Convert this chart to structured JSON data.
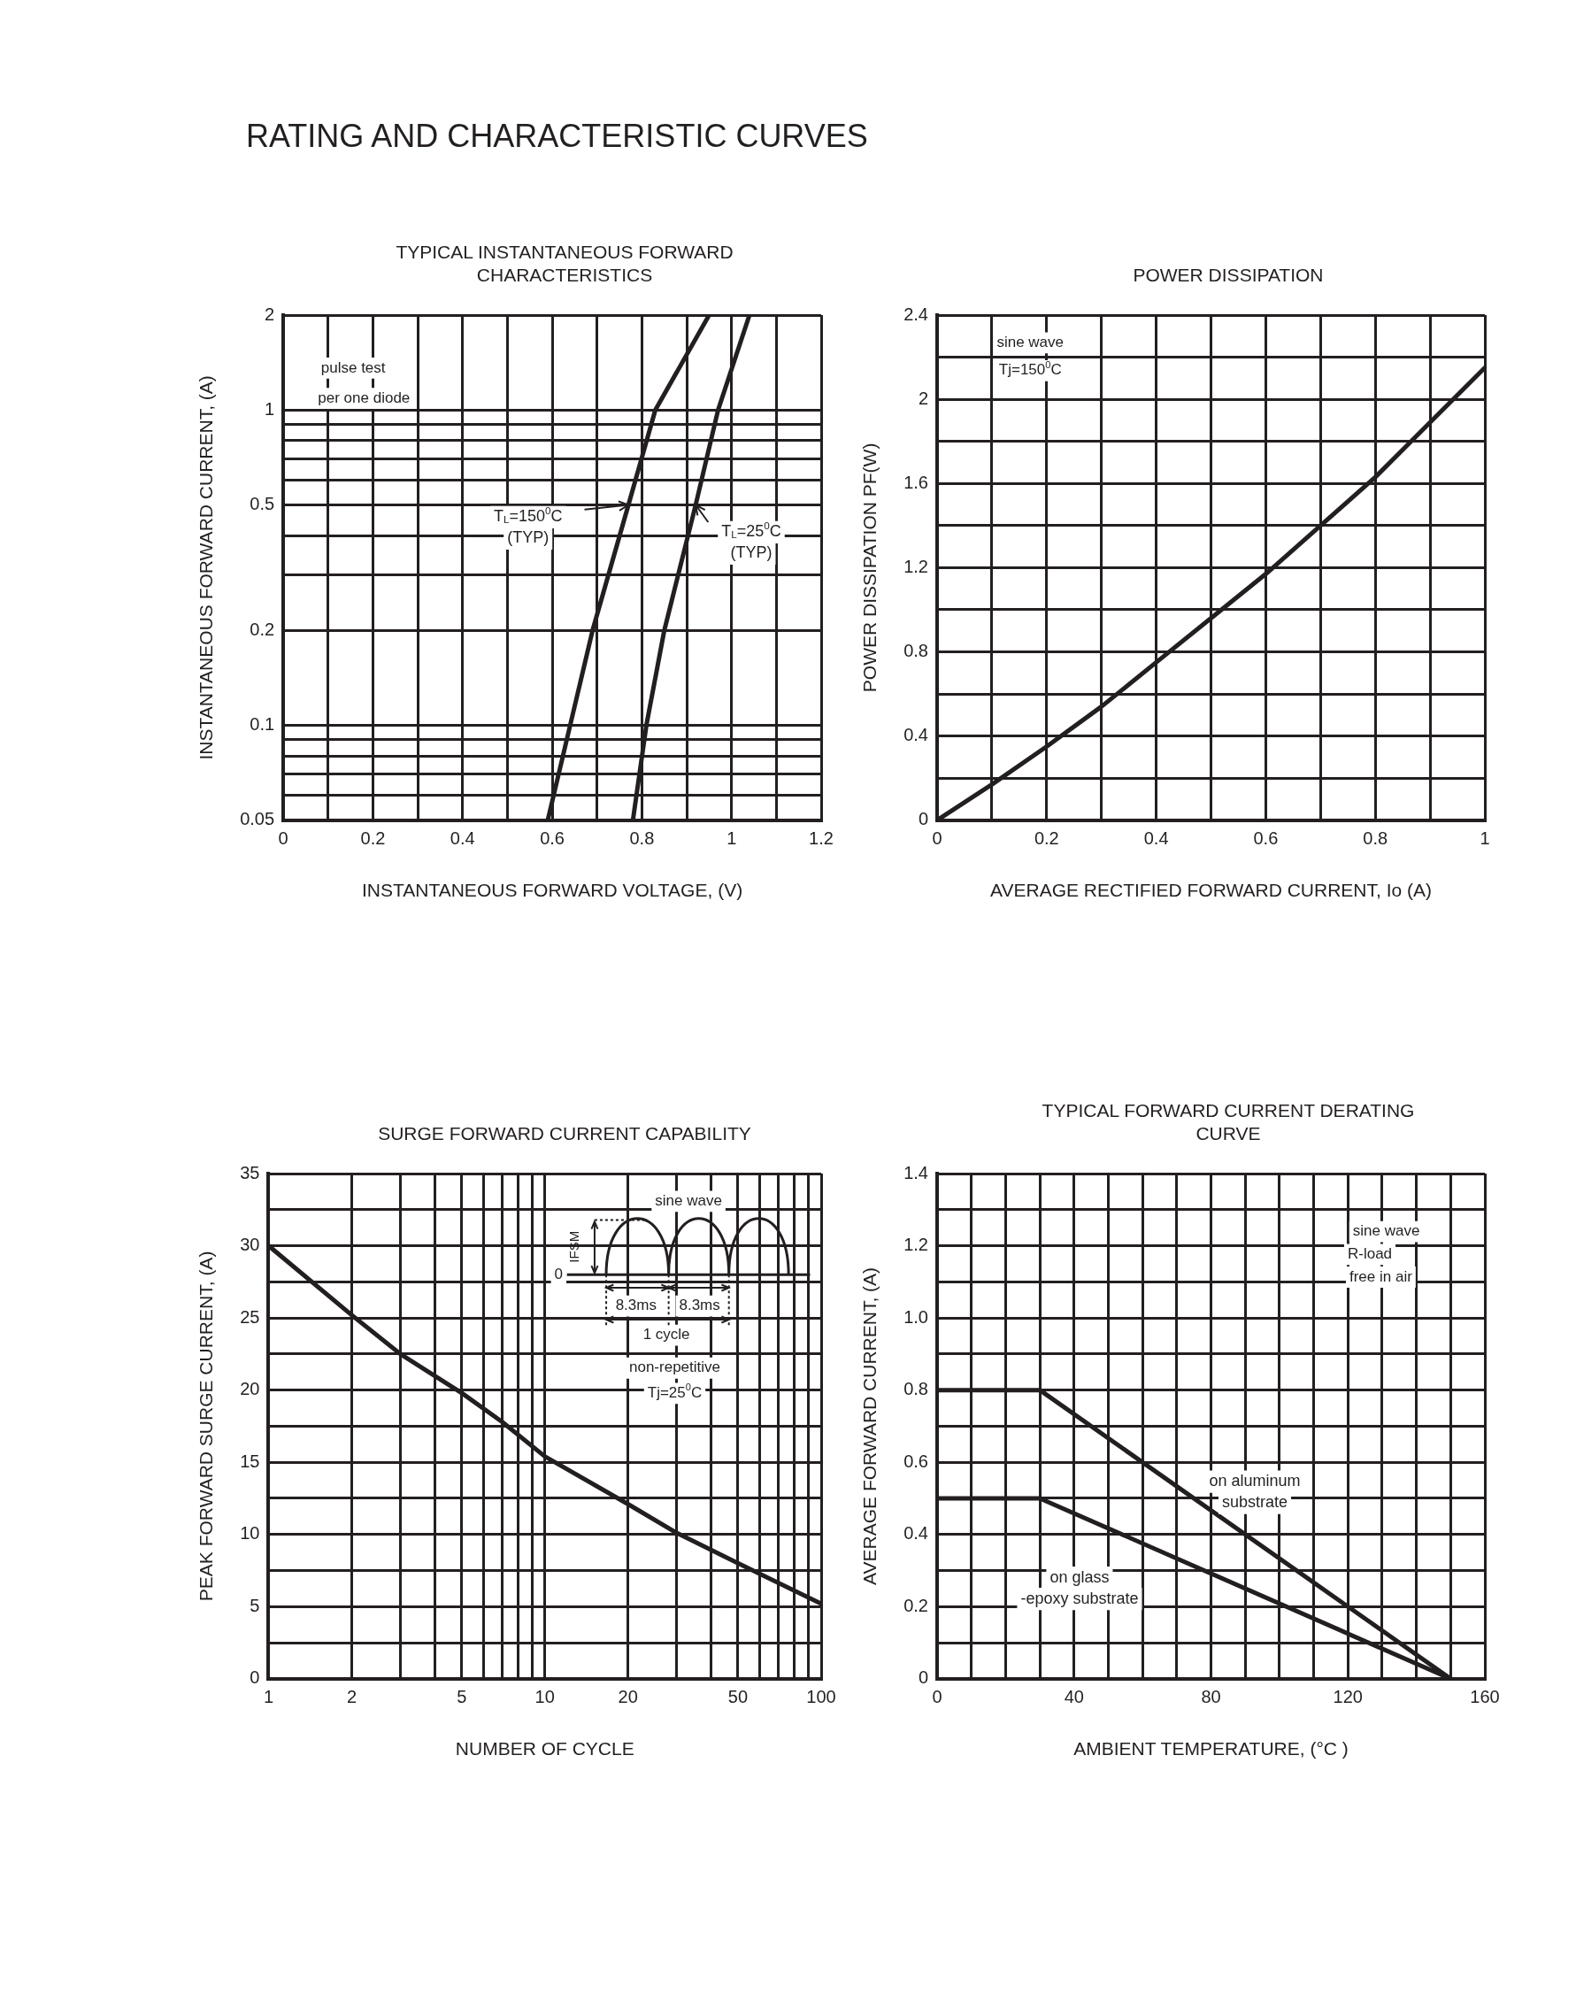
{
  "chart_data": [
    {
      "type": "line",
      "title": "TYPICAL INSTANTANEOUS FORWARD CHARACTERISTICS",
      "xlabel": "INSTANTANEOUS FORWARD VOLTAGE, (V)",
      "ylabel": "INSTANTANEOUS FORWARD CURRENT, (A)",
      "log": "y",
      "grid": true,
      "xlim": [
        0,
        1.2
      ],
      "xticks": [
        0,
        {
          "value": 0.1,
          "label": null
        },
        0.2,
        {
          "value": 0.3,
          "label": null
        },
        0.4,
        {
          "value": 0.5,
          "label": null
        },
        0.6,
        {
          "value": 0.7,
          "label": null
        },
        0.8,
        {
          "value": 0.9,
          "label": null
        },
        1,
        {
          "value": 1.1,
          "label": null
        },
        1.2
      ],
      "ylim": [
        0.05,
        2
      ],
      "yticks": [
        0.05,
        {
          "value": 0.06,
          "label": null
        },
        {
          "value": 0.07,
          "label": null
        },
        {
          "value": 0.08,
          "label": null
        },
        {
          "value": 0.09,
          "label": null
        },
        0.1,
        0.2,
        {
          "value": 0.3,
          "label": null
        },
        {
          "value": 0.4,
          "label": null
        },
        0.5,
        {
          "value": 0.6,
          "label": null
        },
        {
          "value": 0.7,
          "label": null
        },
        {
          "value": 0.8,
          "label": null
        },
        {
          "value": 0.9,
          "label": null
        },
        1,
        2
      ],
      "annotations": [
        "RATING AND CHARACTERISTIC CURVES",
        "pulse test",
        "per one diode"
      ],
      "series": [
        {
          "name": "T$_{L}$=150$^{0}$C (TYP)",
          "color": "#231f20",
          "x": [
            0.59,
            0.64,
            0.69,
            0.77,
            0.83,
            0.95
          ],
          "values": [
            0.05,
            0.1,
            0.2,
            0.5,
            1,
            2
          ]
        },
        {
          "name": "T$_{L}$=25$^{0}$C (TYP)",
          "color": "#231f20",
          "x": [
            0.78,
            0.81,
            0.85,
            0.92,
            0.97,
            1.04
          ],
          "values": [
            0.05,
            0.1,
            0.2,
            0.5,
            1,
            2
          ]
        }
      ]
    },
    {
      "type": "line",
      "title": "POWER DISSIPATION",
      "xlabel": "AVERAGE RECTIFIED FORWARD CURRENT, Io (A)",
      "ylabel": "POWER DISSIPATION PF(W)",
      "grid": true,
      "xlim": [
        0,
        1
      ],
      "xticks": [
        0,
        {
          "value": 0.1,
          "label": null
        },
        0.2,
        {
          "value": 0.3,
          "label": null
        },
        0.4,
        {
          "value": 0.5,
          "label": null
        },
        0.6,
        {
          "value": 0.7,
          "label": null
        },
        0.8,
        {
          "value": 0.9,
          "label": null
        },
        1
      ],
      "ylim": [
        0,
        2.4
      ],
      "yticks": [
        0,
        {
          "value": 0.2,
          "label": null
        },
        0.4,
        {
          "value": 0.6,
          "label": null
        },
        0.8,
        {
          "value": 1,
          "label": null
        },
        1.2,
        {
          "value": 1.4,
          "label": null
        },
        1.6,
        {
          "value": 1.8,
          "label": null
        },
        2,
        {
          "value": 2.2,
          "label": null
        },
        2.4
      ],
      "annotations": [
        "sine wave",
        "Tj=150$^{0}$C"
      ],
      "x": [
        0,
        0.1,
        0.2,
        0.3,
        0.4,
        0.5,
        0.6,
        0.7,
        0.8,
        0.9,
        1
      ],
      "series": [
        {
          "color": "#231f20",
          "values": [
            0,
            0.17,
            0.35,
            0.54,
            0.75,
            0.96,
            1.17,
            1.4,
            1.63,
            1.89,
            2.15
          ]
        }
      ]
    },
    {
      "type": "line",
      "title": "SURGE FORWARD CURRENT CAPABILITY",
      "xlabel": "NUMBER OF CYCLE",
      "ylabel": "PEAK FORWARD SURGE CURRENT, (A)",
      "log": "x",
      "grid": true,
      "xlim": [
        1,
        100
      ],
      "xticks": [
        1,
        2,
        {
          "value": 3,
          "label": null
        },
        {
          "value": 4,
          "label": null
        },
        5,
        {
          "value": 6,
          "label": null
        },
        {
          "value": 7,
          "label": null
        },
        {
          "value": 8,
          "label": null
        },
        {
          "value": 9,
          "label": null
        },
        10,
        20,
        {
          "value": 30,
          "label": null
        },
        {
          "value": 40,
          "label": null
        },
        50,
        {
          "value": 60,
          "label": null
        },
        {
          "value": 70,
          "label": null
        },
        {
          "value": 80,
          "label": null
        },
        {
          "value": 90,
          "label": null
        },
        100
      ],
      "ylim": [
        0,
        35
      ],
      "yticks": [
        0,
        {
          "value": 2.5,
          "label": null
        },
        5,
        {
          "value": 7.5,
          "label": null
        },
        10,
        {
          "value": 12.5,
          "label": null
        },
        15,
        {
          "value": 17.5,
          "label": null
        },
        20,
        {
          "value": 22.5,
          "label": null
        },
        25,
        {
          "value": 27.5,
          "label": null
        },
        30,
        {
          "value": 32.5,
          "label": null
        },
        35
      ],
      "annotations": [
        "sine wave",
        "IFSM",
        "0",
        "8.3ms",
        "8.3ms",
        "1 cycle",
        "non-repetitive",
        "Tj=25$^{0}$C"
      ],
      "x": [
        1,
        2,
        3,
        5,
        7,
        10,
        20,
        30,
        50,
        100
      ],
      "series": [
        {
          "color": "#231f20",
          "values": [
            30,
            25.2,
            22.5,
            19.8,
            17.8,
            15.4,
            12.1,
            10.1,
            8,
            5.2
          ]
        }
      ]
    },
    {
      "type": "line",
      "title": "TYPICAL FORWARD CURRENT DERATING CURVE",
      "xlabel": "AMBIENT TEMPERATURE, (°C )",
      "ylabel": "AVERAGE FORWARD CURRENT, (A)",
      "grid": true,
      "xlim": [
        0,
        160
      ],
      "xticks": [
        0,
        {
          "value": 10,
          "label": null
        },
        {
          "value": 20,
          "label": null
        },
        {
          "value": 30,
          "label": null
        },
        40,
        {
          "value": 50,
          "label": null
        },
        {
          "value": 60,
          "label": null
        },
        {
          "value": 70,
          "label": null
        },
        80,
        {
          "value": 90,
          "label": null
        },
        {
          "value": 100,
          "label": null
        },
        {
          "value": 110,
          "label": null
        },
        120,
        {
          "value": 130,
          "label": null
        },
        {
          "value": 140,
          "label": null
        },
        {
          "value": 150,
          "label": null
        },
        160
      ],
      "ylim": [
        0,
        1.4
      ],
      "yticks": [
        0,
        {
          "value": 0.1,
          "label": null
        },
        0.2,
        {
          "value": 0.3,
          "label": null
        },
        0.4,
        {
          "value": 0.5,
          "label": null
        },
        0.6,
        {
          "value": 0.7,
          "label": null
        },
        0.8,
        {
          "value": 0.9,
          "label": null
        },
        {
          "value": 1,
          "label": "1.0"
        },
        {
          "value": 1.1,
          "label": null
        },
        1.2,
        {
          "value": 1.3,
          "label": null
        },
        1.4
      ],
      "annotations": [
        "sine wave",
        "R-load",
        "free in air"
      ],
      "x": [
        0,
        30,
        150
      ],
      "series": [
        {
          "name": "on aluminum substrate",
          "color": "#231f20",
          "values": [
            0.8,
            0.8,
            0
          ]
        },
        {
          "name": "on glass -epoxy substrate",
          "color": "#231f20",
          "values": [
            0.5,
            0.5,
            0
          ]
        }
      ]
    }
  ]
}
